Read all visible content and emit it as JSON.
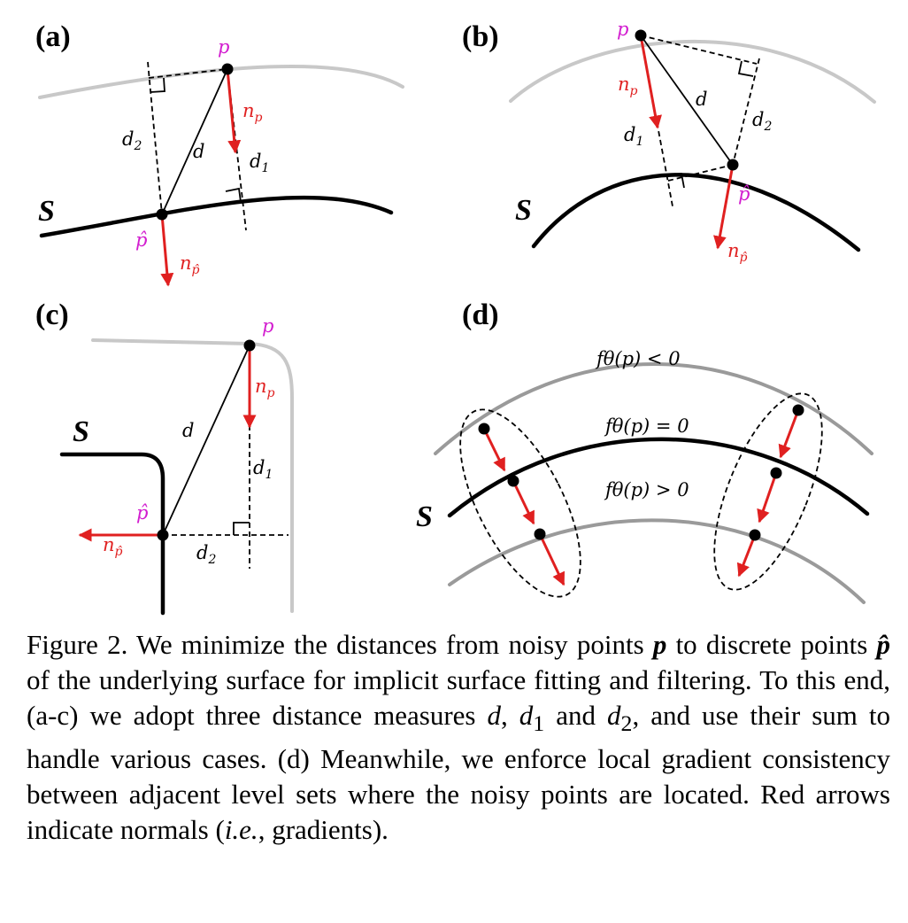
{
  "figure": {
    "panels": [
      {
        "label": "(a)",
        "surface": "S",
        "point": "p",
        "point_hat": "p̂",
        "normal_p": "n",
        "normal_p_sub": "p",
        "normal_hat": "n",
        "normal_hat_sub": "p̂",
        "d": "d",
        "d1": "d",
        "d1_sub": "1",
        "d2": "d",
        "d2_sub": "2"
      },
      {
        "label": "(b)",
        "surface": "S",
        "point": "p",
        "point_hat": "p̂",
        "normal_p": "n",
        "normal_p_sub": "p",
        "normal_hat": "n",
        "normal_hat_sub": "p̂",
        "d": "d",
        "d1": "d",
        "d1_sub": "1",
        "d2": "d",
        "d2_sub": "2"
      },
      {
        "label": "(c)",
        "surface": "S",
        "point": "p",
        "point_hat": "p̂",
        "normal_p": "n",
        "normal_p_sub": "p",
        "normal_hat": "n",
        "normal_hat_sub": "p̂",
        "d": "d",
        "d1": "d",
        "d1_sub": "1",
        "d2": "d",
        "d2_sub": "2"
      },
      {
        "label": "(d)",
        "surface": "S",
        "level_neg": "fθ(p) < 0",
        "level_zero": "fθ(p) = 0",
        "level_pos": "fθ(p) > 0"
      }
    ]
  },
  "caption": {
    "p1": "Figure 2.  We minimize the distances from noisy points ",
    "p_bold": "p",
    "p2": " to discrete points ",
    "phat_bold": "p̂",
    "p3": " of the underlying surface for implicit surface fitting and filtering. To this end, (a-c) we adopt three distance measures ",
    "d": "d",
    "c1": ", ",
    "d1": "d",
    "d1_sub": "1",
    "c2": " and ",
    "d2": "d",
    "d2_sub": "2",
    "p4": ", and use their sum to handle various cases. (d) Meanwhile, we enforce local gradient consistency between adjacent level sets where the noisy points are located.  Red arrows indicate normals (",
    "ie": "i.e.",
    "p5": ", gradients)."
  }
}
